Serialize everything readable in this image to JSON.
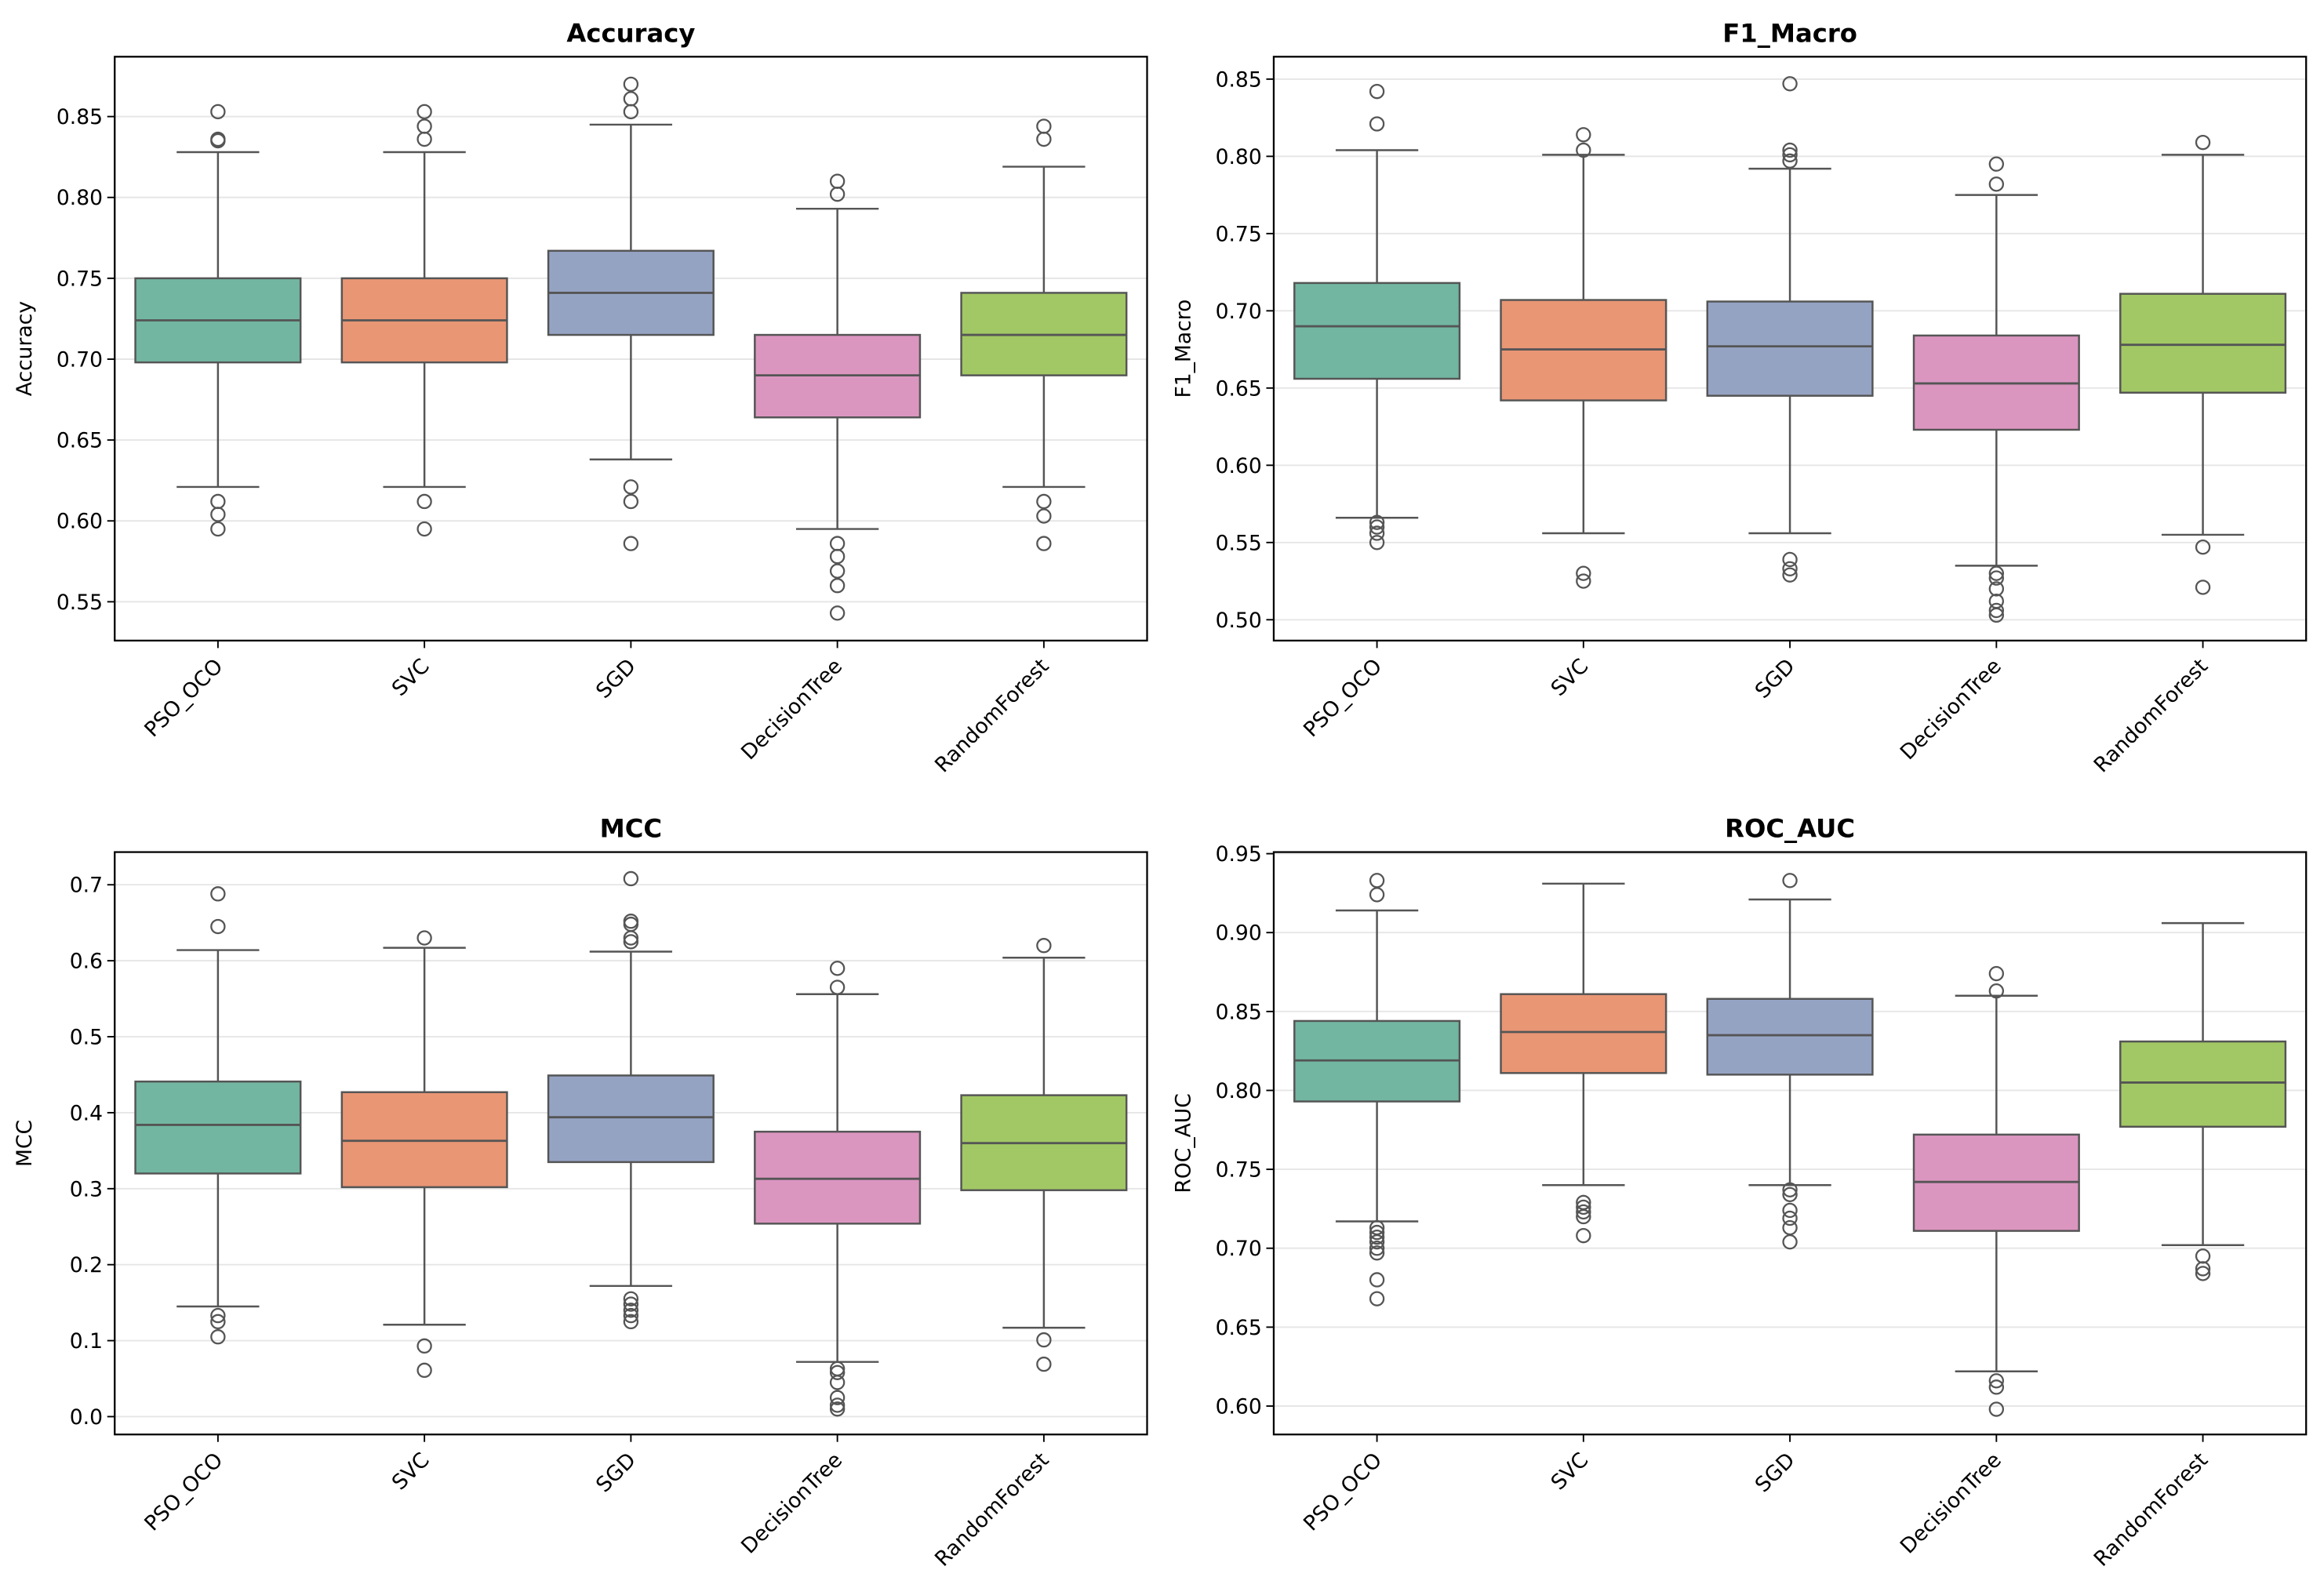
{
  "chart_data": [
    {
      "type": "box",
      "title": "Accuracy",
      "ylabel": "Accuracy",
      "xlabel": "",
      "ylim": [
        0.526,
        0.887
      ],
      "yticks": [
        0.55,
        0.6,
        0.65,
        0.7,
        0.75,
        0.8,
        0.85
      ],
      "tick_decimals": 2,
      "grid": "horizontal",
      "categories": [
        "PSO_OCO",
        "SVC",
        "SGD",
        "DecisionTree",
        "RandomForest"
      ],
      "boxes": [
        {
          "whislo": 0.621,
          "q1": 0.698,
          "med": 0.724,
          "q3": 0.75,
          "whishi": 0.828,
          "outliers": [
            0.853,
            0.836,
            0.835,
            0.612,
            0.604,
            0.595
          ]
        },
        {
          "whislo": 0.621,
          "q1": 0.698,
          "med": 0.724,
          "q3": 0.75,
          "whishi": 0.828,
          "outliers": [
            0.853,
            0.844,
            0.836,
            0.612,
            0.595
          ]
        },
        {
          "whislo": 0.638,
          "q1": 0.715,
          "med": 0.741,
          "q3": 0.767,
          "whishi": 0.845,
          "outliers": [
            0.87,
            0.861,
            0.853,
            0.621,
            0.612,
            0.586
          ]
        },
        {
          "whislo": 0.595,
          "q1": 0.664,
          "med": 0.69,
          "q3": 0.715,
          "whishi": 0.793,
          "outliers": [
            0.81,
            0.802,
            0.586,
            0.578,
            0.569,
            0.56,
            0.543
          ]
        },
        {
          "whislo": 0.621,
          "q1": 0.69,
          "med": 0.715,
          "q3": 0.741,
          "whishi": 0.819,
          "outliers": [
            0.844,
            0.836,
            0.612,
            0.603,
            0.586
          ]
        }
      ]
    },
    {
      "type": "box",
      "title": "F1_Macro",
      "ylabel": "F1_Macro",
      "xlabel": "",
      "ylim": [
        0.4865,
        0.8645
      ],
      "yticks": [
        0.5,
        0.55,
        0.6,
        0.65,
        0.7,
        0.75,
        0.8,
        0.85
      ],
      "tick_decimals": 2,
      "grid": "horizontal",
      "categories": [
        "PSO_OCO",
        "SVC",
        "SGD",
        "DecisionTree",
        "RandomForest"
      ],
      "boxes": [
        {
          "whislo": 0.566,
          "q1": 0.656,
          "med": 0.69,
          "q3": 0.718,
          "whishi": 0.804,
          "outliers": [
            0.842,
            0.821,
            0.563,
            0.56,
            0.556,
            0.55
          ]
        },
        {
          "whislo": 0.556,
          "q1": 0.642,
          "med": 0.675,
          "q3": 0.707,
          "whishi": 0.801,
          "outliers": [
            0.814,
            0.804,
            0.53,
            0.525
          ]
        },
        {
          "whislo": 0.556,
          "q1": 0.645,
          "med": 0.677,
          "q3": 0.706,
          "whishi": 0.792,
          "outliers": [
            0.847,
            0.804,
            0.801,
            0.797,
            0.539,
            0.533,
            0.529
          ]
        },
        {
          "whislo": 0.535,
          "q1": 0.623,
          "med": 0.653,
          "q3": 0.684,
          "whishi": 0.775,
          "outliers": [
            0.795,
            0.782,
            0.53,
            0.527,
            0.52,
            0.512,
            0.506,
            0.503
          ]
        },
        {
          "whislo": 0.555,
          "q1": 0.647,
          "med": 0.678,
          "q3": 0.711,
          "whishi": 0.801,
          "outliers": [
            0.809,
            0.547,
            0.521
          ]
        }
      ]
    },
    {
      "type": "box",
      "title": "MCC",
      "ylabel": "MCC",
      "xlabel": "",
      "ylim": [
        -0.0235,
        0.743
      ],
      "yticks": [
        0.0,
        0.1,
        0.2,
        0.3,
        0.4,
        0.5,
        0.6,
        0.7
      ],
      "tick_decimals": 1,
      "grid": "horizontal",
      "categories": [
        "PSO_OCO",
        "SVC",
        "SGD",
        "DecisionTree",
        "RandomForest"
      ],
      "boxes": [
        {
          "whislo": 0.145,
          "q1": 0.32,
          "med": 0.384,
          "q3": 0.441,
          "whishi": 0.614,
          "outliers": [
            0.688,
            0.645,
            0.133,
            0.125,
            0.105
          ]
        },
        {
          "whislo": 0.121,
          "q1": 0.302,
          "med": 0.363,
          "q3": 0.427,
          "whishi": 0.617,
          "outliers": [
            0.63,
            0.093,
            0.061
          ]
        },
        {
          "whislo": 0.172,
          "q1": 0.335,
          "med": 0.394,
          "q3": 0.449,
          "whishi": 0.612,
          "outliers": [
            0.708,
            0.652,
            0.648,
            0.63,
            0.625,
            0.155,
            0.148,
            0.14,
            0.133,
            0.125
          ]
        },
        {
          "whislo": 0.072,
          "q1": 0.254,
          "med": 0.313,
          "q3": 0.375,
          "whishi": 0.556,
          "outliers": [
            0.59,
            0.565,
            0.063,
            0.058,
            0.045,
            0.025,
            0.015,
            0.01
          ]
        },
        {
          "whislo": 0.117,
          "q1": 0.298,
          "med": 0.36,
          "q3": 0.423,
          "whishi": 0.604,
          "outliers": [
            0.62,
            0.101,
            0.069
          ]
        }
      ]
    },
    {
      "type": "box",
      "title": "ROC_AUC",
      "ylabel": "ROC_AUC",
      "xlabel": "",
      "ylim": [
        0.582,
        0.951
      ],
      "yticks": [
        0.6,
        0.65,
        0.7,
        0.75,
        0.8,
        0.85,
        0.9,
        0.95
      ],
      "tick_decimals": 2,
      "grid": "horizontal",
      "categories": [
        "PSO_OCO",
        "SVC",
        "SGD",
        "DecisionTree",
        "RandomForest"
      ],
      "boxes": [
        {
          "whislo": 0.717,
          "q1": 0.793,
          "med": 0.819,
          "q3": 0.844,
          "whishi": 0.914,
          "outliers": [
            0.933,
            0.924,
            0.713,
            0.71,
            0.707,
            0.704,
            0.7,
            0.697,
            0.68,
            0.668
          ]
        },
        {
          "whislo": 0.74,
          "q1": 0.811,
          "med": 0.837,
          "q3": 0.861,
          "whishi": 0.931,
          "outliers": [
            0.729,
            0.726,
            0.723,
            0.72,
            0.708
          ]
        },
        {
          "whislo": 0.74,
          "q1": 0.81,
          "med": 0.835,
          "q3": 0.858,
          "whishi": 0.921,
          "outliers": [
            0.933,
            0.737,
            0.734,
            0.724,
            0.719,
            0.713,
            0.704
          ]
        },
        {
          "whislo": 0.622,
          "q1": 0.711,
          "med": 0.742,
          "q3": 0.772,
          "whishi": 0.86,
          "outliers": [
            0.874,
            0.863,
            0.616,
            0.612,
            0.598
          ]
        },
        {
          "whislo": 0.702,
          "q1": 0.777,
          "med": 0.805,
          "q3": 0.831,
          "whishi": 0.906,
          "outliers": [
            0.695,
            0.687,
            0.684
          ]
        }
      ]
    }
  ],
  "colors": {
    "palette": [
      "#72b6a1",
      "#e99675",
      "#95a3c3",
      "#db96c0",
      "#a2c865"
    ],
    "edge": "#555555",
    "grid": "#e6e6e6",
    "axis": "#000000"
  }
}
